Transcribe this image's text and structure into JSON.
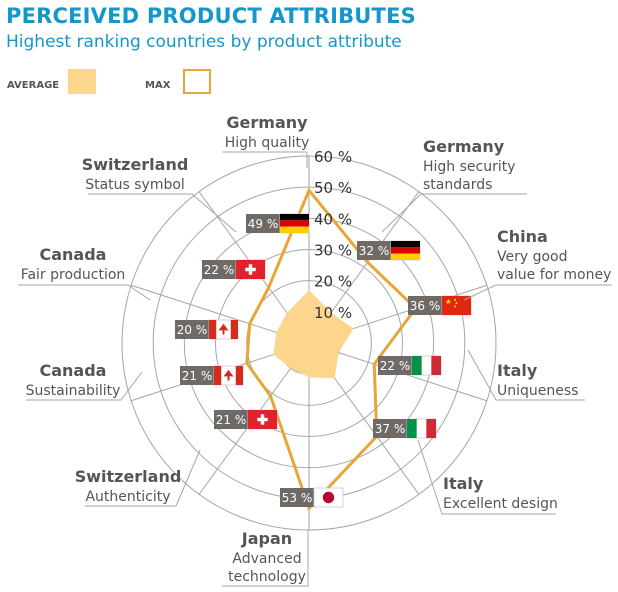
{
  "title": "PERCEIVED PRODUCT ATTRIBUTES",
  "subtitle": "Highest ranking countries by product attribute",
  "legend": {
    "average_label": "AVERAGE",
    "max_label": "MAX"
  },
  "colors": {
    "title": "#1696c9",
    "average_fill": "#fcd68c",
    "max_line": "#e8a636",
    "grid": "#a6a6a6",
    "badge_bg": "#6f6a66",
    "country_text": "#555555"
  },
  "chart_data": {
    "type": "radar",
    "title": "PERCEIVED PRODUCT ATTRIBUTES",
    "subtitle": "Highest ranking countries by product attribute",
    "rlim": [
      0,
      60
    ],
    "ticks": [
      10,
      20,
      30,
      40,
      50,
      60
    ],
    "tick_labels": [
      "10 %",
      "20 %",
      "30 %",
      "40 %",
      "50 %",
      "60 %"
    ],
    "legend": [
      "AVERAGE",
      "MAX"
    ],
    "axes": [
      {
        "country": "Germany",
        "attribute": "High quality",
        "max": 49,
        "max_label": "49 %",
        "flag": "germany",
        "average": 17
      },
      {
        "country": "Germany",
        "attribute": "High security standards",
        "max": 32,
        "max_label": "32 %",
        "flag": "germany",
        "average": 12
      },
      {
        "country": "China",
        "attribute": "Very good value for money",
        "max": 36,
        "max_label": "36 %",
        "flag": "china",
        "average": 15
      },
      {
        "country": "Italy",
        "attribute": "Uniqueness",
        "max": 22,
        "max_label": "22 %",
        "flag": "italy",
        "average": 10
      },
      {
        "country": "Italy",
        "attribute": "Excellent design",
        "max": 37,
        "max_label": "37 %",
        "flag": "italy",
        "average": 14
      },
      {
        "country": "Japan",
        "attribute": "Advanced technology",
        "max": 53,
        "max_label": "53 %",
        "flag": "japan",
        "average": 11
      },
      {
        "country": "Switzerland",
        "attribute": "Authenticity",
        "max": 21,
        "max_label": "21 %",
        "flag": "switzerland",
        "average": 10
      },
      {
        "country": "Canada",
        "attribute": "Sustainability",
        "max": 21,
        "max_label": "21 %",
        "flag": "canada",
        "average": 12
      },
      {
        "country": "Canada",
        "attribute": "Fair production",
        "max": 20,
        "max_label": "20 %",
        "flag": "canada",
        "average": 11
      },
      {
        "country": "Switzerland",
        "attribute": "Status symbol",
        "max": 22,
        "max_label": "22 %",
        "flag": "switzerland",
        "average": 12
      }
    ]
  }
}
